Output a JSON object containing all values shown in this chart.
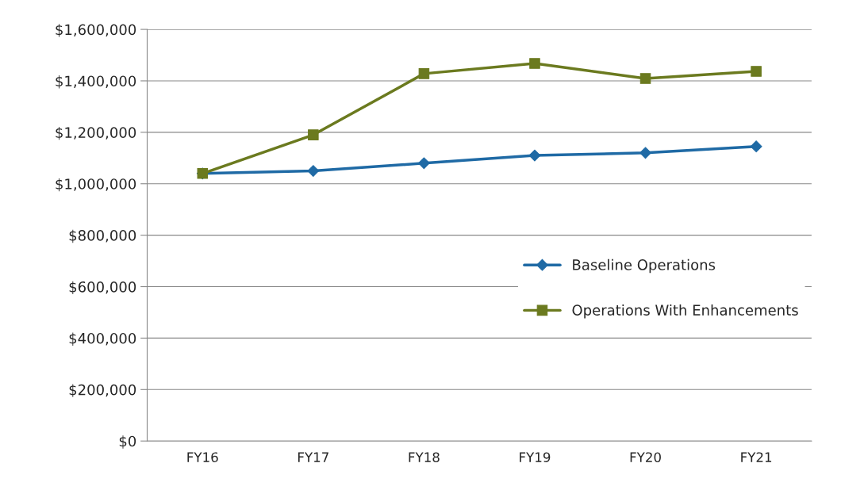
{
  "chart_data": {
    "type": "line",
    "categories": [
      "FY16",
      "FY17",
      "FY18",
      "FY19",
      "FY20",
      "FY21"
    ],
    "series": [
      {
        "name": "Baseline Operations",
        "color": "#1f6aa5",
        "marker": "diamond",
        "values": [
          1040000,
          1050000,
          1080000,
          1110000,
          1120000,
          1145000
        ]
      },
      {
        "name": "Operations With Enhancements",
        "color": "#6b7a1f",
        "marker": "square",
        "values": [
          1040000,
          1190000,
          1428000,
          1468000,
          1409000,
          1437000
        ]
      }
    ],
    "ylim": [
      0,
      1600000
    ],
    "yticks": [
      {
        "value": 0,
        "label": "$0"
      },
      {
        "value": 200000,
        "label": "$200,000"
      },
      {
        "value": 400000,
        "label": "$400,000"
      },
      {
        "value": 600000,
        "label": "$600,000"
      },
      {
        "value": 800000,
        "label": "$800,000"
      },
      {
        "value": 1000000,
        "label": "$1,000,000"
      },
      {
        "value": 1200000,
        "label": "$1,200,000"
      },
      {
        "value": 1400000,
        "label": "$1,400,000"
      },
      {
        "value": 1600000,
        "label": "$1,600,000"
      }
    ],
    "grid": "y",
    "legend": "right",
    "line_style": "solid"
  }
}
